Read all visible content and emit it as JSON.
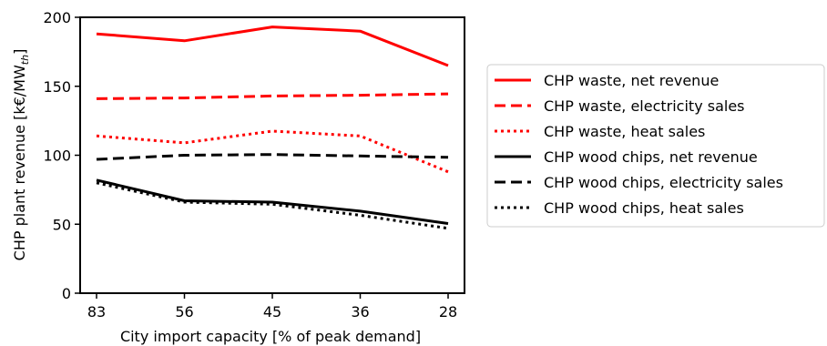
{
  "chart_data": {
    "type": "line",
    "categories": [
      "83",
      "56",
      "45",
      "36",
      "28"
    ],
    "xlabel": "City import capacity [% of peak demand]",
    "ylabel_prefix": "CHP plant revenue [k€/MW",
    "ylabel_sub": "th",
    "ylabel_suffix": "]",
    "ylim": [
      0,
      200
    ],
    "yticks": [
      0,
      50,
      100,
      150,
      200
    ],
    "grid": false,
    "legend_position": "right",
    "series": [
      {
        "name": "CHP waste, net revenue",
        "values": [
          188,
          183,
          193,
          190,
          165
        ],
        "color": "#ff0000",
        "dash": "solid"
      },
      {
        "name": "CHP waste, electricity sales",
        "values": [
          141,
          141.5,
          143,
          143.5,
          144.5
        ],
        "color": "#ff0000",
        "dash": "dashed"
      },
      {
        "name": "CHP waste, heat sales",
        "values": [
          114,
          109,
          117.5,
          114,
          88
        ],
        "color": "#ff0000",
        "dash": "dotted"
      },
      {
        "name": "CHP wood chips, net revenue",
        "values": [
          82,
          67,
          66,
          59.5,
          50.5
        ],
        "color": "#000000",
        "dash": "solid"
      },
      {
        "name": "CHP wood chips, electricity sales",
        "values": [
          97,
          100,
          100.5,
          99.5,
          98.5
        ],
        "color": "#000000",
        "dash": "dashed"
      },
      {
        "name": "CHP wood chips, heat sales",
        "values": [
          80,
          66,
          64.5,
          56.5,
          47
        ],
        "color": "#000000",
        "dash": "dotted"
      }
    ]
  }
}
